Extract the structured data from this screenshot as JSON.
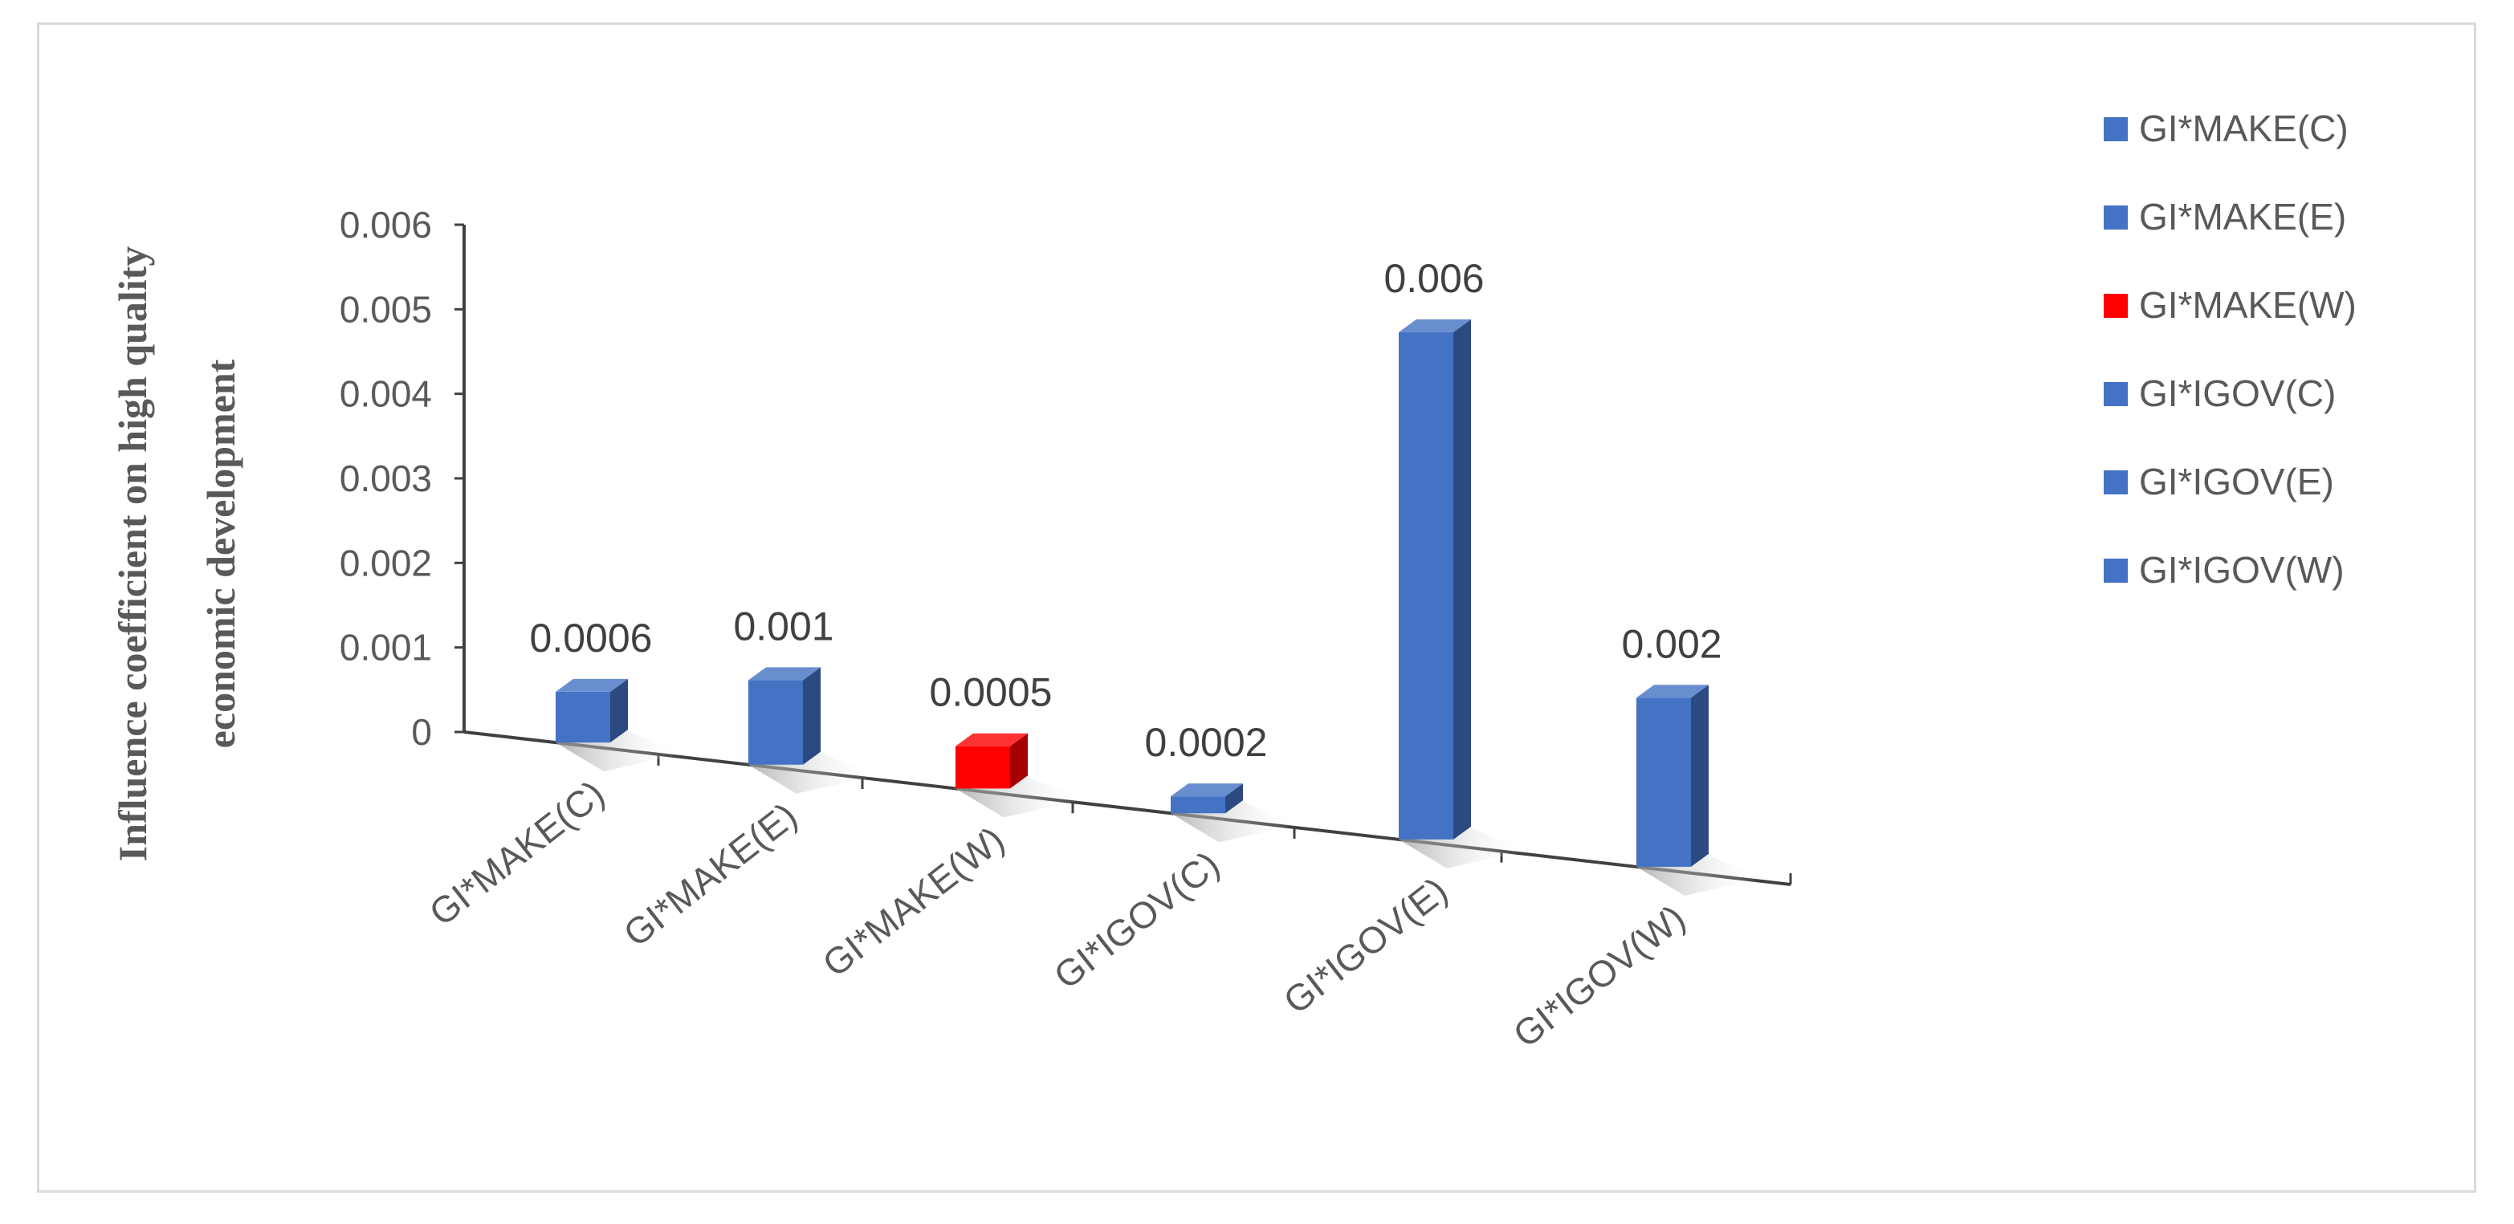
{
  "chart_data": {
    "type": "bar",
    "categories": [
      "GI*MAKE(C)",
      "GI*MAKE(E)",
      "GI*MAKE(W)",
      "GI*IGOV(C)",
      "GI*IGOV(E)",
      "GI*IGOV(W)"
    ],
    "values": [
      0.0006,
      0.001,
      0.0005,
      0.0002,
      0.006,
      0.002
    ],
    "data_labels": [
      "0.0006",
      "0.001",
      "0.0005",
      "0.0002",
      "0.006",
      "0.002"
    ],
    "ylabel": [
      "Influence coefficient on high quality",
      "economic development"
    ],
    "yticks": [
      "0",
      "0.001",
      "0.002",
      "0.003",
      "0.004",
      "0.005",
      "0.006"
    ],
    "ylim": [
      0,
      0.006
    ],
    "legend": [
      "GI*MAKE(C)",
      "GI*MAKE(E)",
      "GI*MAKE(W)",
      "GI*IGOV(C)",
      "GI*IGOV(E)",
      "GI*IGOV(W)"
    ],
    "legend_position": "right",
    "colors": [
      "#4472c4",
      "#4472c4",
      "#ff0000",
      "#4472c4",
      "#4472c4",
      "#4472c4"
    ],
    "style": "3d-bar",
    "grid": false
  }
}
